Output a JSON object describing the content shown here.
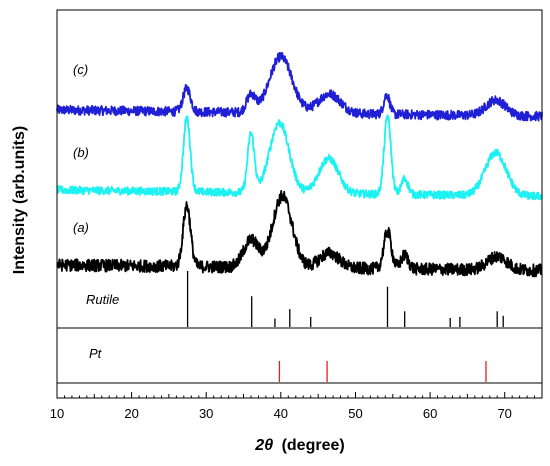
{
  "chart_data": {
    "type": "line",
    "xlabel_symbol": "2θ",
    "xlabel_unit": "(degree)",
    "ylabel": "Intensity (arb.units)",
    "xlim": [
      10,
      75
    ],
    "xticks": [
      10,
      20,
      30,
      40,
      50,
      60,
      70
    ],
    "series": [
      {
        "name": "(c)",
        "color": "#1f1fd6",
        "baseline": 0.48,
        "noise": 0.06,
        "peaks": [
          {
            "x": 27.4,
            "height": 0.3,
            "width": 0.5
          },
          {
            "x": 36.0,
            "height": 0.22,
            "width": 0.6
          },
          {
            "x": 40.0,
            "height": 0.72,
            "width": 1.5
          },
          {
            "x": 46.5,
            "height": 0.25,
            "width": 1.5
          },
          {
            "x": 54.2,
            "height": 0.25,
            "width": 0.4
          },
          {
            "x": 68.8,
            "height": 0.2,
            "width": 1.3
          }
        ]
      },
      {
        "name": "(b)",
        "color": "#1cf2f2",
        "baseline": 0.45,
        "noise": 0.05,
        "peaks": [
          {
            "x": 27.4,
            "height": 0.95,
            "width": 0.45
          },
          {
            "x": 36.0,
            "height": 0.75,
            "width": 0.45
          },
          {
            "x": 39.8,
            "height": 0.9,
            "width": 1.3
          },
          {
            "x": 46.4,
            "height": 0.45,
            "width": 1.3
          },
          {
            "x": 54.3,
            "height": 1.0,
            "width": 0.45
          },
          {
            "x": 56.6,
            "height": 0.2,
            "width": 0.45
          },
          {
            "x": 68.8,
            "height": 0.55,
            "width": 1.4
          }
        ]
      },
      {
        "name": "(a)",
        "color": "#000000",
        "baseline": 0.5,
        "noise": 0.09,
        "peaks": [
          {
            "x": 27.4,
            "height": 0.9,
            "width": 0.5
          },
          {
            "x": 36.0,
            "height": 0.4,
            "width": 1.0
          },
          {
            "x": 40.2,
            "height": 1.05,
            "width": 1.3
          },
          {
            "x": 46.5,
            "height": 0.22,
            "width": 1.3
          },
          {
            "x": 54.3,
            "height": 0.55,
            "width": 0.5
          },
          {
            "x": 56.6,
            "height": 0.2,
            "width": 0.5
          },
          {
            "x": 69.0,
            "height": 0.2,
            "width": 1.3
          }
        ]
      }
    ],
    "reference_patterns": [
      {
        "name": "Rutile",
        "color": "#000000",
        "lines": [
          {
            "x": 27.5,
            "intensity": 1.0
          },
          {
            "x": 36.1,
            "intensity": 0.55
          },
          {
            "x": 39.2,
            "intensity": 0.15
          },
          {
            "x": 41.2,
            "intensity": 0.32
          },
          {
            "x": 44.0,
            "intensity": 0.18
          },
          {
            "x": 54.3,
            "intensity": 0.72
          },
          {
            "x": 56.6,
            "intensity": 0.28
          },
          {
            "x": 62.7,
            "intensity": 0.16
          },
          {
            "x": 64.0,
            "intensity": 0.18
          },
          {
            "x": 69.0,
            "intensity": 0.28
          },
          {
            "x": 69.8,
            "intensity": 0.2
          }
        ]
      },
      {
        "name": "Pt",
        "color": "#e8201a",
        "lines": [
          {
            "x": 39.8,
            "intensity": 0.7
          },
          {
            "x": 46.2,
            "intensity": 0.7
          },
          {
            "x": 67.5,
            "intensity": 0.7
          }
        ]
      }
    ]
  }
}
